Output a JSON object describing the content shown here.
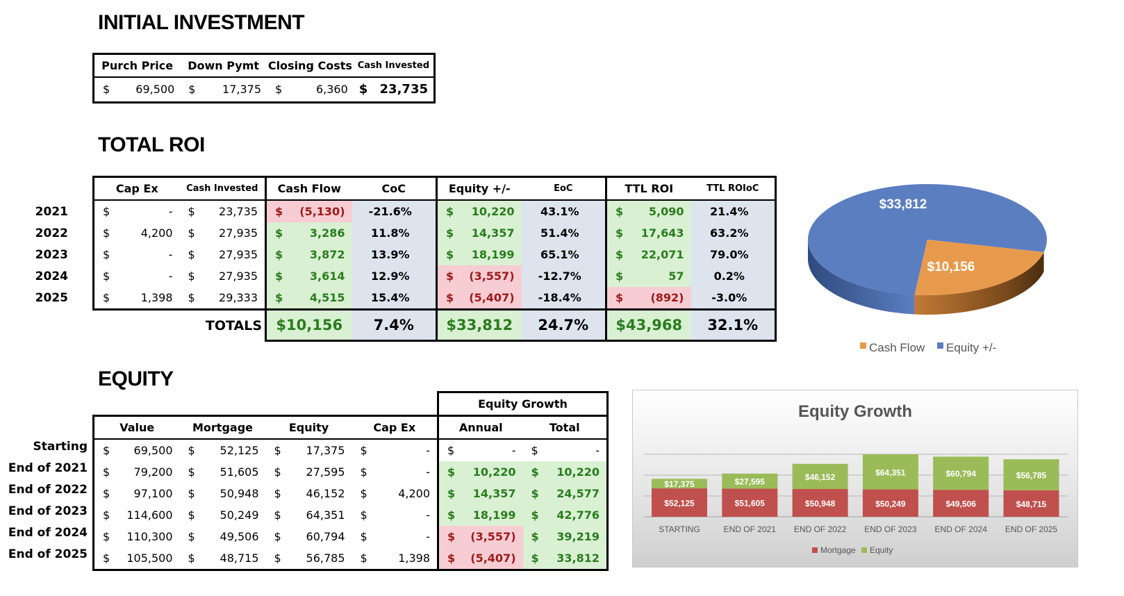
{
  "initial_investment": {
    "title": "INITIAL INVESTMENT",
    "headers": [
      "Purch Price",
      "Down Pymt",
      "Closing Costs",
      "Cash Invested"
    ],
    "currency": "$",
    "values": [
      "69,500",
      "17,375",
      "6,360",
      "23,735"
    ]
  },
  "total_roi": {
    "title": "TOTAL ROI",
    "headers": [
      "Cap Ex",
      "Cash Invested",
      "Cash Flow",
      "CoC",
      "Equity +/-",
      "EoC",
      "TTL ROI",
      "TTL ROIoC"
    ],
    "currency": "$",
    "rows": [
      {
        "year": "2021",
        "capex": "-",
        "cash_invested": "23,735",
        "cash_flow": "(5,130)",
        "coc": "-21.6%",
        "equity": "10,220",
        "eoc": "43.1%",
        "ttl_roi": "5,090",
        "ttl_roioc": "21.4%"
      },
      {
        "year": "2022",
        "capex": "4,200",
        "cash_invested": "27,935",
        "cash_flow": "3,286",
        "coc": "11.8%",
        "equity": "14,357",
        "eoc": "51.4%",
        "ttl_roi": "17,643",
        "ttl_roioc": "63.2%"
      },
      {
        "year": "2023",
        "capex": "-",
        "cash_invested": "27,935",
        "cash_flow": "3,872",
        "coc": "13.9%",
        "equity": "18,199",
        "eoc": "65.1%",
        "ttl_roi": "22,071",
        "ttl_roioc": "79.0%"
      },
      {
        "year": "2024",
        "capex": "-",
        "cash_invested": "27,935",
        "cash_flow": "3,614",
        "coc": "12.9%",
        "equity": "(3,557)",
        "eoc": "-12.7%",
        "ttl_roi": "57",
        "ttl_roioc": "0.2%"
      },
      {
        "year": "2025",
        "capex": "1,398",
        "cash_invested": "29,333",
        "cash_flow": "4,515",
        "coc": "15.4%",
        "equity": "(5,407)",
        "eoc": "-18.4%",
        "ttl_roi": "(892)",
        "ttl_roioc": "-3.0%"
      }
    ],
    "totals": {
      "label": "TOTALS",
      "cash_flow": "$10,156",
      "coc": "7.4%",
      "equity": "$33,812",
      "eoc": "24.7%",
      "ttl_roi": "$43,968",
      "ttl_roioc": "32.1%"
    }
  },
  "equity": {
    "title": "EQUITY",
    "group_header": "Equity Growth",
    "headers": [
      "Value",
      "Mortgage",
      "Equity",
      "Cap Ex",
      "Annual",
      "Total"
    ],
    "currency": "$",
    "rows": [
      {
        "label": "Starting",
        "value": "69,500",
        "mortgage": "52,125",
        "equity": "17,375",
        "capex": "-",
        "annual": "-",
        "total": "-"
      },
      {
        "label": "End of 2021",
        "value": "79,200",
        "mortgage": "51,605",
        "equity": "27,595",
        "capex": "-",
        "annual": "10,220",
        "total": "10,220"
      },
      {
        "label": "End of 2022",
        "value": "97,100",
        "mortgage": "50,948",
        "equity": "46,152",
        "capex": "4,200",
        "annual": "14,357",
        "total": "24,577"
      },
      {
        "label": "End of 2023",
        "value": "114,600",
        "mortgage": "50,249",
        "equity": "64,351",
        "capex": "-",
        "annual": "18,199",
        "total": "42,776"
      },
      {
        "label": "End of 2024",
        "value": "110,300",
        "mortgage": "49,506",
        "equity": "60,794",
        "capex": "-",
        "annual": "(3,557)",
        "total": "39,219"
      },
      {
        "label": "End of 2025",
        "value": "105,500",
        "mortgage": "48,715",
        "equity": "56,785",
        "capex": "1,398",
        "annual": "(5,407)",
        "total": "33,812"
      }
    ]
  },
  "colors": {
    "positive_fill": "#d9f0d3",
    "negative_fill": "#f7cdd3",
    "neutral_fill": "#dde4ee",
    "positive_text": "#2a7c1e",
    "negative_text": "#9c1a1a",
    "pie_equity": "#5b7ec0",
    "pie_cash_flow": "#e89a4c",
    "bar_mortgage": "#c0504d",
    "bar_equity": "#9bbb59"
  },
  "chart_data": [
    {
      "type": "pie",
      "title": "",
      "labels": [
        "Cash Flow",
        "Equity +/-"
      ],
      "values": [
        10156,
        33812
      ],
      "data_labels": [
        "$10,156",
        "$33,812"
      ],
      "legend": "bottom"
    },
    {
      "type": "bar",
      "stacked": true,
      "title": "Equity Growth",
      "categories": [
        "STARTING",
        "END OF 2021",
        "END OF 2022",
        "END OF 2023",
        "END OF 2024",
        "END OF 2025"
      ],
      "series": [
        {
          "name": "Mortgage",
          "values": [
            52125,
            51605,
            50948,
            50249,
            49506,
            48715
          ],
          "labels": [
            "$52,125",
            "$51,605",
            "$50,948",
            "$50,249",
            "$49,506",
            "$48,715"
          ]
        },
        {
          "name": "Equity",
          "values": [
            17375,
            27595,
            46152,
            64351,
            60794,
            56785
          ],
          "labels": [
            "$17,375",
            "$27,595",
            "$46,152",
            "$64,351",
            "$60,794",
            "$56,785"
          ]
        }
      ],
      "legend": "bottom"
    }
  ]
}
